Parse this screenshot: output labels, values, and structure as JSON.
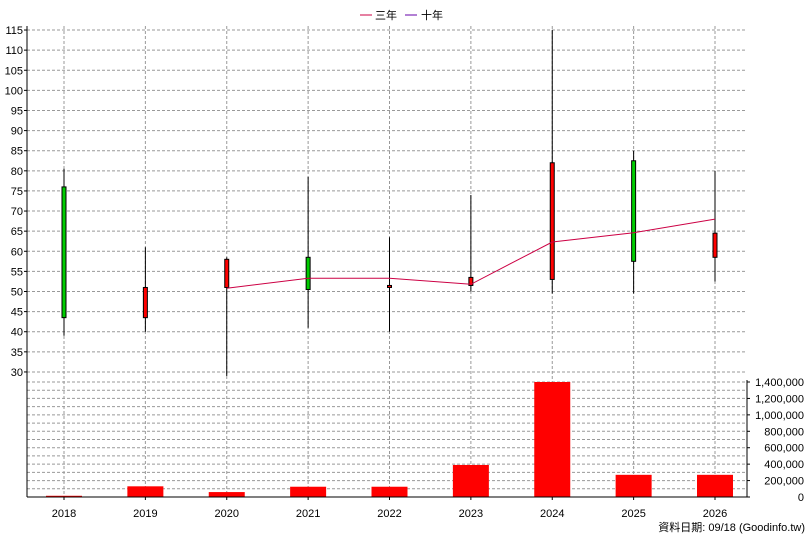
{
  "chart_data": {
    "type": "candlestick",
    "legend": {
      "position": "top-center",
      "items": [
        {
          "label": "三年",
          "color": "#cc0044"
        },
        {
          "label": "十年",
          "color": "#6600aa"
        }
      ]
    },
    "categories": [
      "2018",
      "2019",
      "2020",
      "2021",
      "2022",
      "2023",
      "2024",
      "2025",
      "2026"
    ],
    "price_axis": {
      "ylim": [
        28,
        116
      ],
      "ticks": [
        30,
        35,
        40,
        45,
        50,
        55,
        60,
        65,
        70,
        75,
        80,
        85,
        90,
        95,
        100,
        105,
        110,
        115
      ]
    },
    "volume_axis": {
      "ylim": [
        0,
        1400000
      ],
      "ticks": [
        0,
        200000,
        400000,
        600000,
        800000,
        1000000,
        1200000,
        1400000
      ],
      "tick_labels": [
        "0",
        "200,000",
        "400,000",
        "600,000",
        "800,000",
        "1,000,000",
        "1,200,000",
        "1,400,000"
      ]
    },
    "candles": [
      {
        "year": "2018",
        "open": 43.5,
        "high": 80.5,
        "low": 39,
        "close": 76,
        "color": "green"
      },
      {
        "year": "2019",
        "open": 51,
        "high": 61,
        "low": 40,
        "close": 43.5,
        "color": "red"
      },
      {
        "year": "2020",
        "open": 58,
        "high": 58.5,
        "low": 29,
        "close": 51,
        "color": "red"
      },
      {
        "year": "2021",
        "open": 50.5,
        "high": 78.5,
        "low": 41,
        "close": 58.5,
        "color": "green"
      },
      {
        "year": "2022",
        "open": 51.5,
        "high": 63.5,
        "low": 40,
        "close": 51,
        "color": "red"
      },
      {
        "year": "2023",
        "open": 53.5,
        "high": 74,
        "low": 50,
        "close": 51.5,
        "color": "red"
      },
      {
        "year": "2024",
        "open": 82,
        "high": 115,
        "low": 49.5,
        "close": 53,
        "color": "red"
      },
      {
        "year": "2025",
        "open": 57.5,
        "high": 85,
        "low": 49.5,
        "close": 82.5,
        "color": "green"
      },
      {
        "year": "2026",
        "open": 64.5,
        "high": 80,
        "low": 52.5,
        "close": 58.5,
        "color": "red"
      }
    ],
    "series": [
      {
        "name": "三年",
        "color": "#cc0044",
        "points": [
          {
            "year": "2020",
            "value": 50.8
          },
          {
            "year": "2021",
            "value": 53.3
          },
          {
            "year": "2022",
            "value": 53.3
          },
          {
            "year": "2023",
            "value": 51.8
          },
          {
            "year": "2024",
            "value": 62.3
          },
          {
            "year": "2025",
            "value": 64.6
          },
          {
            "year": "2026",
            "value": 68
          }
        ]
      }
    ],
    "volume": {
      "color": "#ff0000",
      "values": [
        15000,
        130000,
        60000,
        125000,
        125000,
        390000,
        1400000,
        270000,
        270000
      ]
    },
    "grid": true,
    "footer": "資料日期: 09/18  (Goodinfo.tw)"
  }
}
